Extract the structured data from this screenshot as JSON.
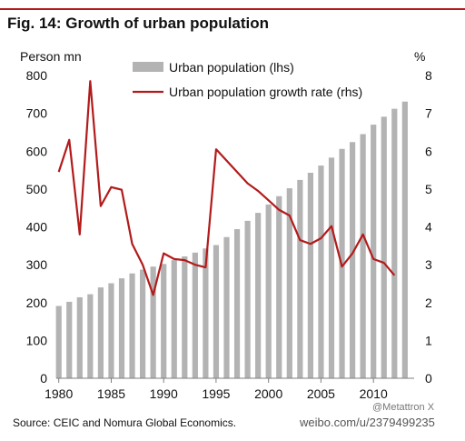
{
  "figure": {
    "title": "Fig. 14: Growth of urban population",
    "source": "Source: CEIC and Nomura Global Economics.",
    "watermark_handle": "@Metattron X",
    "watermark_url": "weibo.com/u/2379499235"
  },
  "colors": {
    "bars": "#b3b3b3",
    "line": "#b21b1b",
    "rule": "#b21b1b",
    "axis": "#7f7f7f",
    "text": "#111111"
  },
  "chart_data": {
    "type": "bar",
    "left_axis_label": "Person mn",
    "right_axis_label": "%",
    "ylim": [
      0,
      800
    ],
    "ylim_right": [
      0,
      8
    ],
    "y_ticks": [
      0,
      100,
      200,
      300,
      400,
      500,
      600,
      700,
      800
    ],
    "y_ticks_right": [
      0,
      1,
      2,
      3,
      4,
      5,
      6,
      7,
      8
    ],
    "x_ticks": [
      1980,
      1985,
      1990,
      1995,
      2000,
      2005,
      2010
    ],
    "grid": false,
    "legend_position": "top-center",
    "categories": [
      1980,
      1981,
      1982,
      1983,
      1984,
      1985,
      1986,
      1987,
      1988,
      1989,
      1990,
      1991,
      1992,
      1993,
      1994,
      1995,
      1996,
      1997,
      1998,
      1999,
      2000,
      2001,
      2002,
      2003,
      2004,
      2005,
      2006,
      2007,
      2008,
      2009,
      2010,
      2011,
      2012,
      2013
    ],
    "series": [
      {
        "name": "Urban population (lhs)",
        "type": "bar",
        "axis": "left",
        "values": [
          191,
          202,
          214,
          222,
          240,
          251,
          264,
          277,
          287,
          295,
          302,
          312,
          322,
          332,
          343,
          352,
          373,
          394,
          416,
          437,
          459,
          481,
          502,
          524,
          543,
          562,
          583,
          606,
          624,
          645,
          670,
          691,
          712,
          731
        ]
      },
      {
        "name": "Urban population growth rate (rhs)",
        "type": "line",
        "axis": "right",
        "values": [
          5.45,
          6.3,
          3.8,
          7.85,
          4.55,
          5.05,
          4.98,
          3.55,
          3.0,
          2.2,
          3.3,
          3.15,
          3.12,
          3.0,
          2.93,
          6.05,
          5.75,
          5.45,
          5.15,
          4.95,
          4.7,
          4.45,
          4.3,
          3.65,
          3.55,
          3.7,
          4.02,
          2.95,
          3.3,
          3.8,
          3.15,
          3.05,
          2.72,
          null
        ]
      }
    ]
  }
}
